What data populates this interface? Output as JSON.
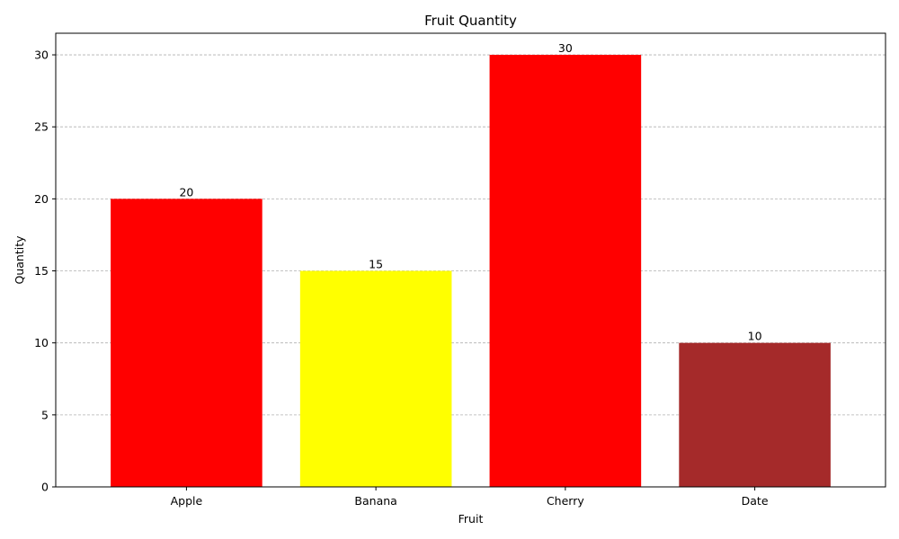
{
  "chart_data": {
    "type": "bar",
    "title": "Fruit Quantity",
    "xlabel": "Fruit",
    "ylabel": "Quantity",
    "categories": [
      "Apple",
      "Banana",
      "Cherry",
      "Date"
    ],
    "values": [
      20,
      15,
      30,
      10
    ],
    "colors": [
      "#ff0000",
      "#ffff00",
      "#ff0000",
      "#a52a2a"
    ],
    "ylim": [
      0,
      31.5
    ],
    "yticks": [
      0,
      5,
      10,
      15,
      20,
      25,
      30
    ],
    "grid": "y-axis dashed",
    "data_labels": true
  }
}
